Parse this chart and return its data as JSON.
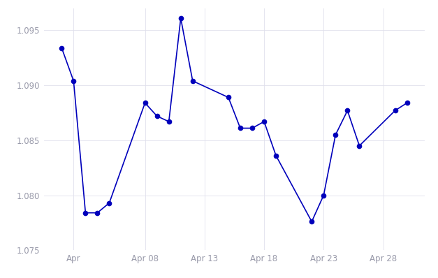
{
  "dates": [
    1,
    2,
    3,
    4,
    5,
    8,
    9,
    10,
    11,
    12,
    15,
    16,
    17,
    18,
    19,
    22,
    23,
    24,
    25,
    26,
    29,
    30
  ],
  "values": [
    1.0934,
    1.0904,
    1.0784,
    1.0784,
    1.0793,
    1.0884,
    1.0872,
    1.0867,
    1.0961,
    1.0904,
    1.0889,
    1.0861,
    1.0861,
    1.0867,
    1.0836,
    1.0776,
    1.08,
    1.0855,
    1.0877,
    1.0845,
    1.0877,
    1.0884
  ],
  "ylim": [
    1.075,
    1.097
  ],
  "yticks": [
    1.075,
    1.08,
    1.085,
    1.09,
    1.095
  ],
  "xtick_positions": [
    2,
    8,
    13,
    18,
    23,
    28
  ],
  "xtick_labels": [
    "Apr",
    "Apr 08",
    "Apr 13",
    "Apr 18",
    "Apr 23",
    "Apr 28"
  ],
  "xlim": [
    -0.5,
    31.5
  ],
  "line_color": "#0000bb",
  "marker_color": "#0000bb",
  "bg_color": "#ffffff",
  "grid_color": "#e0e0ec",
  "tick_label_color": "#999aaa",
  "tick_fontsize": 8.5,
  "marker_size": 4.5,
  "linewidth": 1.2
}
